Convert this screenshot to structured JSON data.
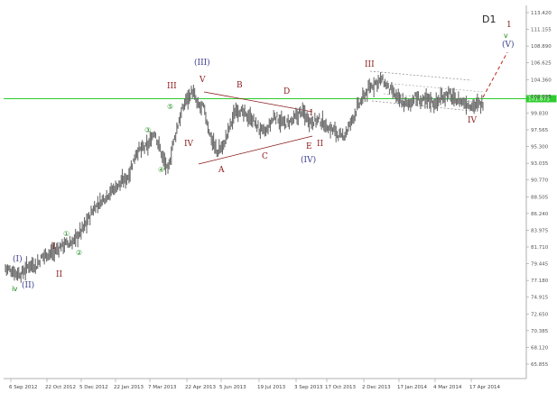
{
  "chart_data": {
    "type": "line",
    "title": "D1",
    "current_price_label": "101.875",
    "y_ticks": [
      "113.420",
      "111.155",
      "108.890",
      "106.625",
      "104.360",
      "102.095",
      "99.830",
      "97.565",
      "95.300",
      "93.035",
      "90.770",
      "88.505",
      "86.240",
      "83.975",
      "81.710",
      "79.445",
      "77.180",
      "74.915",
      "72.650",
      "70.385",
      "68.120",
      "65.855"
    ],
    "x_ticks": [
      "6 Sep 2012",
      "22 Oct 2012",
      "5 Dec 2012",
      "22 Jan 2013",
      "7 Mar 2013",
      "22 Apr 2013",
      "5 Jun 2013",
      "19 Jul 2013",
      "3 Sep 2013",
      "17 Oct 2013",
      "2 Dec 2013",
      "17 Jan 2014",
      "4 Mar 2014",
      "17 Apr 2014"
    ],
    "ylim": [
      64.5,
      114.5
    ],
    "grid": false,
    "colors": {
      "price": "#6b6b6b",
      "level_line": "#2ecc2e",
      "wave_red": "#8b1a1a",
      "wave_blue": "#3a3d8c",
      "wave_green": "#1f8a1f",
      "channel": "#888888",
      "projection": "#c0392b"
    },
    "series": [
      {
        "x": [
          "6 Sep 2012",
          "22 Oct 2012",
          "5 Dec 2012",
          "22 Jan 2013",
          "7 Mar 2013",
          "22 Apr 2013",
          "5 Jun 2013",
          "19 Jul 2013",
          "3 Sep 2013",
          "17 Oct 2013",
          "2 Dec 2013",
          "17 Jan 2014",
          "4 Mar 2014",
          "17 Apr 2014"
        ],
        "values": [
          78.8,
          80.2,
          82.6,
          89.0,
          95.5,
          101.3,
          95.5,
          100.7,
          98.5,
          97.0,
          104.2,
          101.0,
          102.6,
          101.8
        ]
      }
    ],
    "annotations": [
      {
        "text": "(I)",
        "style": "blue"
      },
      {
        "text": "(II)",
        "style": "blue"
      },
      {
        "text": "I",
        "style": "red"
      },
      {
        "text": "II",
        "style": "red"
      },
      {
        "text": "①",
        "style": "green"
      },
      {
        "text": "②",
        "style": "green"
      },
      {
        "text": "ⅳ",
        "style": "green"
      },
      {
        "text": "③",
        "style": "green"
      },
      {
        "text": "④",
        "style": "green"
      },
      {
        "text": "⑤",
        "style": "green"
      },
      {
        "text": "III",
        "style": "red"
      },
      {
        "text": "IV",
        "style": "red"
      },
      {
        "text": "V",
        "style": "red"
      },
      {
        "text": "(III)",
        "style": "blue"
      },
      {
        "text": "A",
        "style": "red"
      },
      {
        "text": "B",
        "style": "red"
      },
      {
        "text": "C",
        "style": "red"
      },
      {
        "text": "D",
        "style": "red"
      },
      {
        "text": "E",
        "style": "red"
      },
      {
        "text": "I",
        "style": "red"
      },
      {
        "text": "II",
        "style": "red"
      },
      {
        "text": "(IV)",
        "style": "blue"
      },
      {
        "text": "III",
        "style": "red"
      },
      {
        "text": "IV",
        "style": "red"
      },
      {
        "text": "1",
        "style": "red"
      },
      {
        "text": "ⅴ",
        "style": "green"
      },
      {
        "text": "(V)",
        "style": "blue"
      }
    ]
  }
}
